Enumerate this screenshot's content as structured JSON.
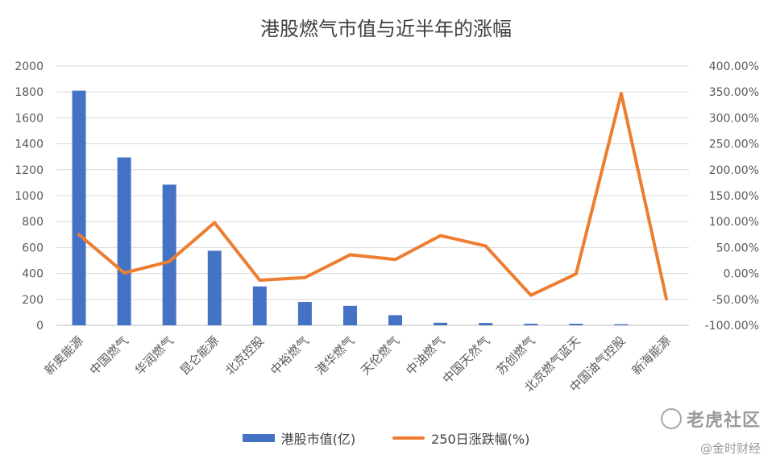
{
  "chart_data": {
    "type": "bar",
    "title": "港股燃气市值与近半年的涨幅",
    "categories": [
      "新奥能源",
      "中国燃气",
      "华润燃气",
      "昆仑能源",
      "北京控股",
      "中裕燃气",
      "港华燃气",
      "天伦燃气",
      "中油燃气",
      "中国天然气",
      "苏创燃气",
      "北京燃气蓝天",
      "中国油气控股",
      "新海能源"
    ],
    "series": [
      {
        "name": "港股市值(亿)",
        "type": "bar",
        "axis": "left",
        "color": "#4472C4",
        "values": [
          1810,
          1295,
          1085,
          575,
          300,
          180,
          150,
          78,
          20,
          18,
          12,
          12,
          8,
          0
        ]
      },
      {
        "name": "250日涨跌幅(%)",
        "type": "line",
        "axis": "right",
        "color": "#ED7D31",
        "values": [
          75,
          1,
          23,
          98,
          -13,
          -8,
          36,
          27,
          73,
          53,
          -42,
          -1,
          347,
          -49
        ]
      }
    ],
    "y_left": {
      "min": 0,
      "max": 2000,
      "ticks": [
        "0",
        "200",
        "400",
        "600",
        "800",
        "1000",
        "1200",
        "1400",
        "1600",
        "1800",
        "2000"
      ]
    },
    "y_right": {
      "min": -100,
      "max": 400,
      "ticks": [
        "-100.00%",
        "-50.00%",
        "0.00%",
        "50.00%",
        "100.00%",
        "150.00%",
        "200.00%",
        "250.00%",
        "300.00%",
        "350.00%",
        "400.00%"
      ]
    },
    "grid": true,
    "legend_position": "bottom"
  },
  "watermark": {
    "brand": "老虎社区",
    "author": "@金时财经"
  }
}
